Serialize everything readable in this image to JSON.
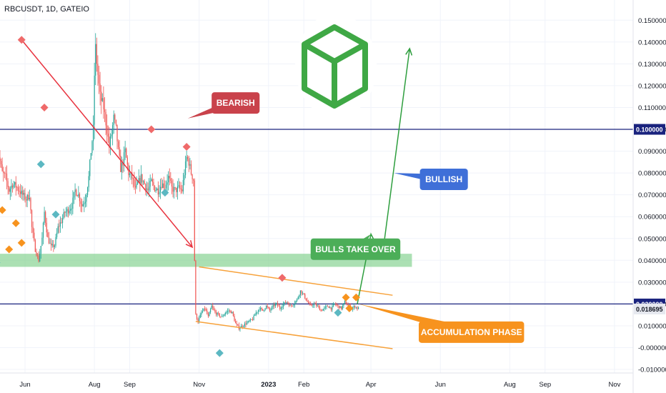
{
  "title": "RBCUSDT, 1D, GATEIO",
  "colors": {
    "bull": "#26a69a",
    "bear": "#ef5350",
    "trendline": "#e8333f",
    "channel": "#f7a23b",
    "support_zone": "#7ed08a",
    "hline": "#1a237e",
    "bearish_box": "#c9424b",
    "bullish_box": "#3f6fd8",
    "bulls_box": "#4cae58",
    "accum_box": "#f7931e",
    "projection": "#2e9e3e",
    "logo": "#3fa845",
    "diamond_red": "#ef6a6a",
    "diamond_teal": "#5cb8c2",
    "diamond_orange": "#f7931e"
  },
  "chart_data": {
    "type": "candlestick",
    "y_axis": {
      "ticks": [
        "0.150000",
        "0.140000",
        "0.130000",
        "0.120000",
        "0.110000",
        "0.100000",
        "0.090000",
        "0.080000",
        "0.070000",
        "0.060000",
        "0.050000",
        "0.040000",
        "0.030000",
        "0.020000",
        "0.010000",
        "-0.000000",
        "-0.010000"
      ],
      "ylim": [
        -0.013,
        0.156
      ]
    },
    "x_axis": {
      "ticks": [
        {
          "label": "Jun",
          "x": 0,
          "bold": false
        },
        {
          "label": "Aug",
          "x": 61,
          "bold": false
        },
        {
          "label": "Sep",
          "x": 92,
          "bold": false
        },
        {
          "label": "Nov",
          "x": 153,
          "bold": false
        },
        {
          "label": "2023",
          "x": 214,
          "bold": true
        },
        {
          "label": "Feb",
          "x": 245,
          "bold": false
        },
        {
          "label": "Apr",
          "x": 304,
          "bold": false
        },
        {
          "label": "Jun",
          "x": 365,
          "bold": false
        },
        {
          "label": "Aug",
          "x": 426,
          "bold": false
        },
        {
          "label": "Sep",
          "x": 457,
          "bold": false
        },
        {
          "label": "Nov",
          "x": 518,
          "bold": false
        }
      ]
    },
    "anchors": [
      [
        -25,
        0.072
      ],
      [
        -22,
        0.088
      ],
      [
        -19,
        0.08
      ],
      [
        -16,
        0.078
      ],
      [
        -13,
        0.072
      ],
      [
        -10,
        0.075
      ],
      [
        -7,
        0.074
      ],
      [
        -4,
        0.072
      ],
      [
        -1,
        0.07
      ],
      [
        2,
        0.068
      ],
      [
        5,
        0.07
      ],
      [
        7,
        0.055
      ],
      [
        10,
        0.045
      ],
      [
        13,
        0.04
      ],
      [
        16,
        0.05
      ],
      [
        18,
        0.062
      ],
      [
        21,
        0.05
      ],
      [
        24,
        0.046
      ],
      [
        27,
        0.047
      ],
      [
        30,
        0.055
      ],
      [
        33,
        0.058
      ],
      [
        36,
        0.062
      ],
      [
        39,
        0.063
      ],
      [
        42,
        0.065
      ],
      [
        45,
        0.072
      ],
      [
        48,
        0.07
      ],
      [
        51,
        0.065
      ],
      [
        54,
        0.068
      ],
      [
        57,
        0.078
      ],
      [
        59,
        0.09
      ],
      [
        61,
        0.1
      ],
      [
        62,
        0.125
      ],
      [
        63,
        0.137
      ],
      [
        65,
        0.125
      ],
      [
        67,
        0.115
      ],
      [
        70,
        0.11
      ],
      [
        73,
        0.1
      ],
      [
        75,
        0.092
      ],
      [
        77,
        0.098
      ],
      [
        79,
        0.105
      ],
      [
        81,
        0.1
      ],
      [
        83,
        0.09
      ],
      [
        85,
        0.082
      ],
      [
        87,
        0.085
      ],
      [
        89,
        0.09
      ],
      [
        92,
        0.08
      ],
      [
        95,
        0.078
      ],
      [
        98,
        0.072
      ],
      [
        100,
        0.075
      ],
      [
        103,
        0.078
      ],
      [
        106,
        0.075
      ],
      [
        109,
        0.072
      ],
      [
        112,
        0.076
      ],
      [
        115,
        0.073
      ],
      [
        118,
        0.072
      ],
      [
        121,
        0.075
      ],
      [
        124,
        0.074
      ],
      [
        127,
        0.078
      ],
      [
        130,
        0.073
      ],
      [
        133,
        0.072
      ],
      [
        136,
        0.073
      ],
      [
        139,
        0.072
      ],
      [
        141,
        0.08
      ],
      [
        143,
        0.087
      ],
      [
        145,
        0.085
      ],
      [
        147,
        0.08
      ],
      [
        149,
        0.077
      ],
      [
        150,
        0.04
      ],
      [
        151,
        0.015
      ],
      [
        153,
        0.012
      ],
      [
        156,
        0.016
      ],
      [
        159,
        0.018
      ],
      [
        162,
        0.014
      ],
      [
        165,
        0.019
      ],
      [
        168,
        0.016
      ],
      [
        171,
        0.015
      ],
      [
        174,
        0.014
      ],
      [
        177,
        0.016
      ],
      [
        180,
        0.017
      ],
      [
        183,
        0.016
      ],
      [
        186,
        0.011
      ],
      [
        189,
        0.009
      ],
      [
        192,
        0.01
      ],
      [
        195,
        0.011
      ],
      [
        198,
        0.012
      ],
      [
        201,
        0.013
      ],
      [
        204,
        0.016
      ],
      [
        207,
        0.018
      ],
      [
        210,
        0.017
      ],
      [
        213,
        0.019
      ],
      [
        216,
        0.017
      ],
      [
        219,
        0.019
      ],
      [
        222,
        0.02
      ],
      [
        225,
        0.018
      ],
      [
        228,
        0.02
      ],
      [
        231,
        0.021
      ],
      [
        234,
        0.019
      ],
      [
        237,
        0.02
      ],
      [
        240,
        0.022
      ],
      [
        243,
        0.026
      ],
      [
        246,
        0.024
      ],
      [
        249,
        0.021
      ],
      [
        252,
        0.019
      ],
      [
        255,
        0.02
      ],
      [
        258,
        0.019
      ],
      [
        261,
        0.017
      ],
      [
        264,
        0.018
      ],
      [
        267,
        0.019
      ],
      [
        270,
        0.018
      ],
      [
        273,
        0.02
      ],
      [
        276,
        0.019
      ],
      [
        279,
        0.018
      ],
      [
        282,
        0.021
      ],
      [
        285,
        0.019
      ],
      [
        288,
        0.018
      ],
      [
        291,
        0.019
      ],
      [
        293,
        0.018
      ]
    ],
    "horizontal_lines": [
      {
        "value": 0.1,
        "badge": "0.100000"
      },
      {
        "value": 0.02,
        "badge": "0.020000"
      }
    ],
    "last_price": {
      "value": 0.018695,
      "label": "0.018695"
    },
    "support_zone": {
      "x_start": -24,
      "x_end": 340,
      "y_low": 0.037,
      "y_high": 0.043
    },
    "trendline": {
      "x1": -3,
      "y1": 0.141,
      "x2": 147,
      "y2": 0.046
    },
    "channel": {
      "upper": {
        "x1": 153,
        "y1": 0.037,
        "x2": 323,
        "y2": 0.024
      },
      "lower": {
        "x1": 150,
        "y1": 0.012,
        "x2": 323,
        "y2": -0.0005
      }
    },
    "projection": [
      [
        292,
        0.02
      ],
      [
        304,
        0.052
      ],
      [
        314,
        0.042
      ],
      [
        338,
        0.137
      ]
    ],
    "diamonds": [
      {
        "x": -3,
        "y": 0.141,
        "color": "red"
      },
      {
        "x": 17,
        "y": 0.11,
        "color": "red"
      },
      {
        "x": 111,
        "y": 0.1,
        "color": "red"
      },
      {
        "x": 142,
        "y": 0.092,
        "color": "red"
      },
      {
        "x": 226,
        "y": 0.032,
        "color": "red"
      },
      {
        "x": 14,
        "y": 0.084,
        "color": "teal"
      },
      {
        "x": 27,
        "y": 0.061,
        "color": "teal"
      },
      {
        "x": 123,
        "y": 0.071,
        "color": "teal"
      },
      {
        "x": -25,
        "y": 0.039,
        "color": "teal"
      },
      {
        "x": 275,
        "y": 0.016,
        "color": "teal"
      },
      {
        "x": 171,
        "y": -0.0025,
        "color": "teal"
      },
      {
        "x": -14,
        "y": 0.045,
        "color": "orange"
      },
      {
        "x": -20,
        "y": 0.063,
        "color": "orange"
      },
      {
        "x": -8,
        "y": 0.057,
        "color": "orange"
      },
      {
        "x": -3,
        "y": 0.048,
        "color": "orange"
      },
      {
        "x": 282,
        "y": 0.023,
        "color": "orange"
      },
      {
        "x": 285,
        "y": 0.018,
        "color": "orange"
      },
      {
        "x": 291,
        "y": 0.023,
        "color": "orange"
      }
    ],
    "callouts": [
      {
        "text": "BEARISH",
        "color": "bearish_box",
        "anchor": [
          143,
          0.105
        ],
        "box_anchor": [
          164,
          0.117
        ]
      },
      {
        "text": "BULLISH",
        "color": "bullish_box",
        "anchor": [
          324,
          0.08
        ],
        "box_anchor": [
          347,
          0.082
        ]
      },
      {
        "text": "BULLS TAKE OVER",
        "color": "bulls_box",
        "anchor": [
          304,
          0.052
        ],
        "box_anchor": [
          251,
          0.05
        ]
      },
      {
        "text": "ACCUMULATION PHASE",
        "color": "accum_box",
        "anchor": [
          293,
          0.02
        ],
        "box_anchor": [
          346,
          0.012
        ]
      }
    ]
  }
}
